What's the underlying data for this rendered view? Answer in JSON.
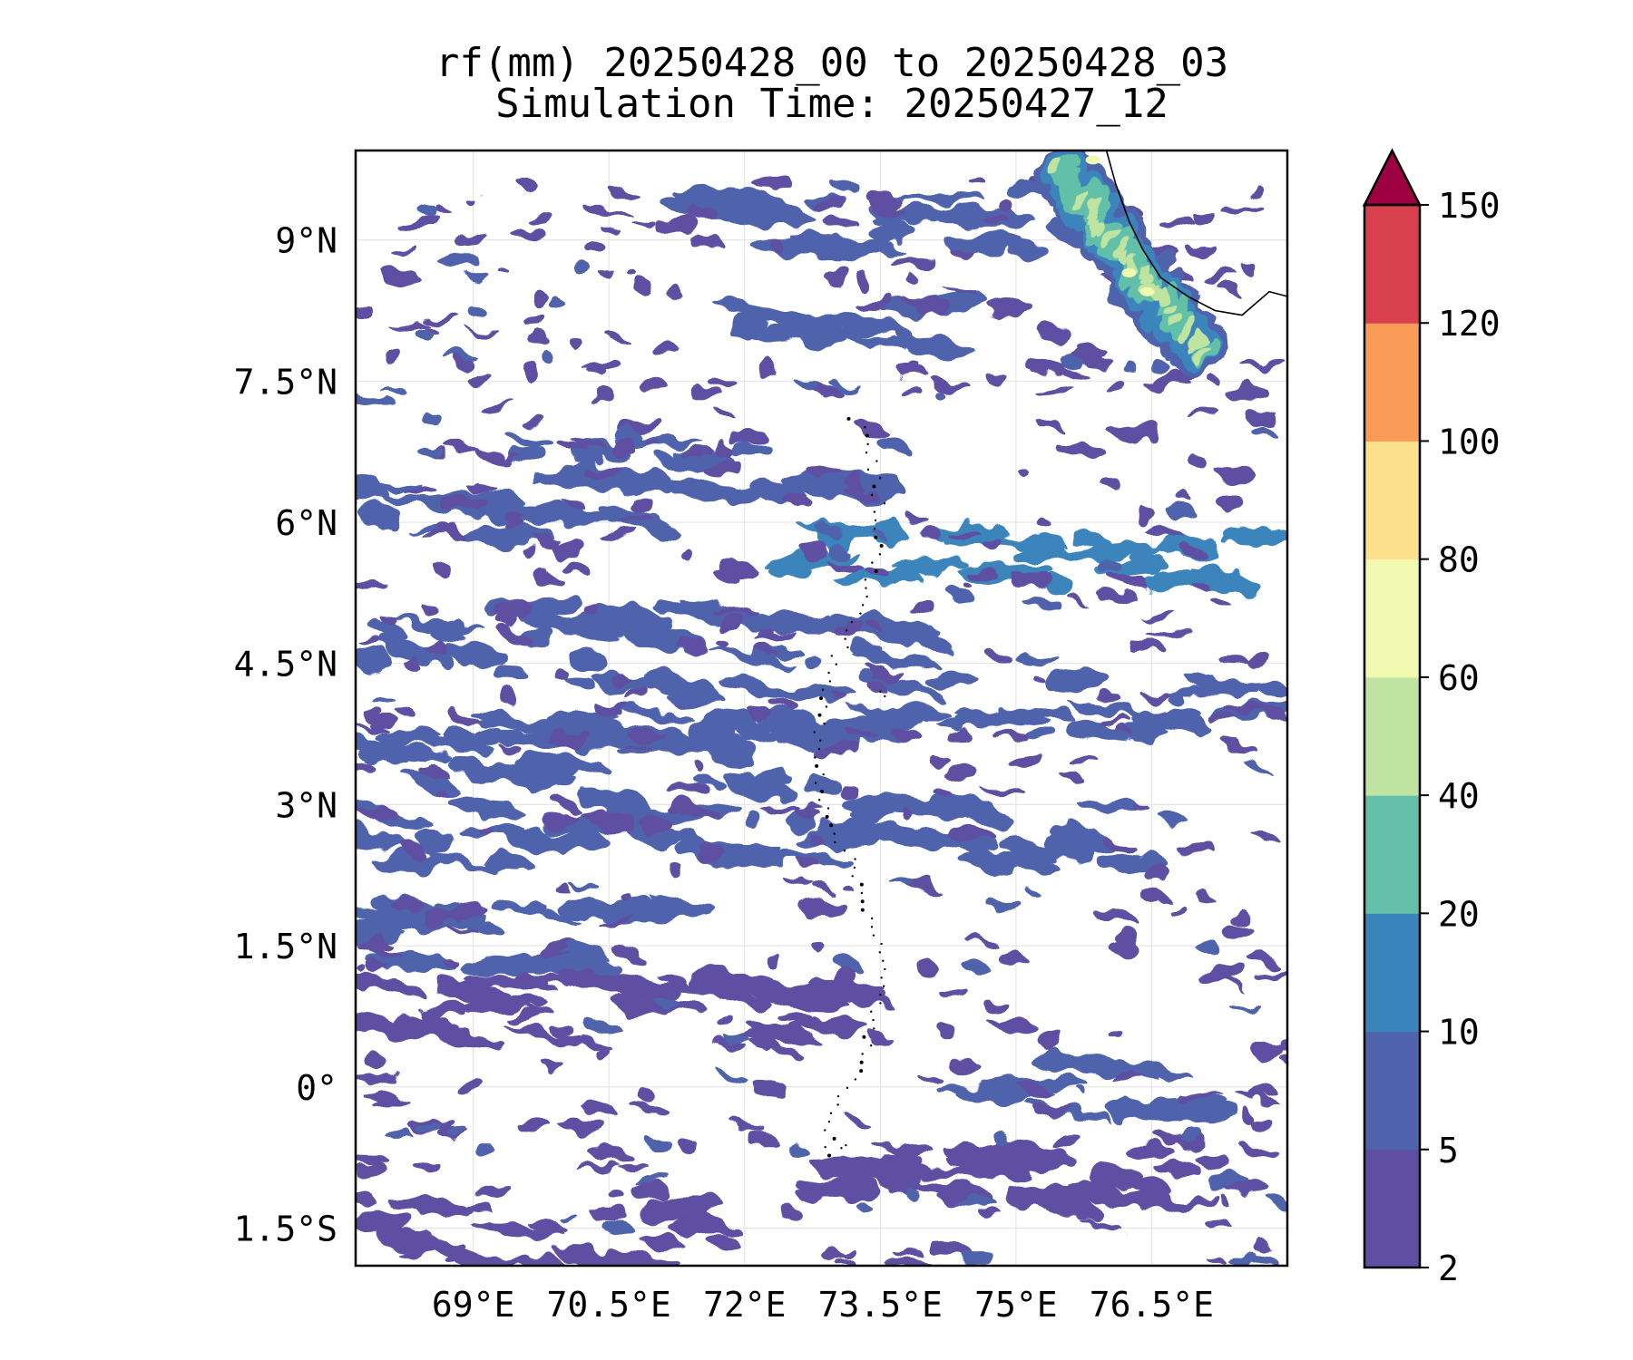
{
  "title_line1": "rf(mm) 20250428_00 to 20250428_03",
  "title_line2": "Simulation Time: 20250427_12",
  "map": {
    "lon_range": [
      67.7,
      78.0
    ],
    "lat_range": [
      -1.9,
      9.95
    ],
    "x_ticks": [
      {
        "value": 69.0,
        "label": "69°E"
      },
      {
        "value": 70.5,
        "label": "70.5°E"
      },
      {
        "value": 72.0,
        "label": "72°E"
      },
      {
        "value": 73.5,
        "label": "73.5°E"
      },
      {
        "value": 75.0,
        "label": "75°E"
      },
      {
        "value": 76.5,
        "label": "76.5°E"
      }
    ],
    "y_ticks": [
      {
        "value": 9.0,
        "label": "9°N"
      },
      {
        "value": 7.5,
        "label": "7.5°N"
      },
      {
        "value": 6.0,
        "label": "6°N"
      },
      {
        "value": 4.5,
        "label": "4.5°N"
      },
      {
        "value": 3.0,
        "label": "3°N"
      },
      {
        "value": 1.5,
        "label": "1.5°N"
      },
      {
        "value": 0.0,
        "label": "0°"
      },
      {
        "value": -1.5,
        "label": "1.5°S"
      }
    ],
    "grid": true
  },
  "colorbar": {
    "levels": [
      2,
      5,
      10,
      20,
      40,
      60,
      80,
      100,
      120,
      150
    ],
    "labels": [
      "2",
      "5",
      "10",
      "20",
      "40",
      "60",
      "80",
      "100",
      "120",
      "150"
    ],
    "colors": [
      "#5e4fa2",
      "#4f63ad",
      "#3a84bc",
      "#64c0a8",
      "#bfe4a2",
      "#f2f9b0",
      "#fde08c",
      "#fa9b58",
      "#d8404d"
    ],
    "extend_color": "#9e0142",
    "extend": "max"
  },
  "chart_data": {
    "type": "heatmap",
    "variable": "rf(mm)",
    "title": "rf(mm) 20250428_00 to 20250428_03",
    "subtitle": "Simulation Time: 20250427_12",
    "xlim": [
      67.7,
      78.0
    ],
    "ylim": [
      -1.9,
      9.95
    ],
    "rain_bands": [
      {
        "lat": 9.2,
        "lon_start": 71.5,
        "lon_end": 76.0,
        "level": 5
      },
      {
        "lat": 8.2,
        "lon_start": 72.0,
        "lon_end": 74.5,
        "level": 5
      },
      {
        "lat": 6.6,
        "lon_start": 69.5,
        "lon_end": 73.8,
        "level": 5
      },
      {
        "lat": 6.2,
        "lon_start": 67.7,
        "lon_end": 71.0,
        "level": 5
      },
      {
        "lat": 5.6,
        "lon_start": 72.5,
        "lon_end": 78.0,
        "level": 10
      },
      {
        "lat": 4.8,
        "lon_start": 67.7,
        "lon_end": 74.0,
        "level": 5
      },
      {
        "lat": 4.0,
        "lon_start": 69.0,
        "lon_end": 78.0,
        "level": 5
      },
      {
        "lat": 3.5,
        "lon_start": 67.7,
        "lon_end": 72.5,
        "level": 5
      },
      {
        "lat": 2.7,
        "lon_start": 67.7,
        "lon_end": 76.5,
        "level": 5
      },
      {
        "lat": 1.6,
        "lon_start": 67.7,
        "lon_end": 71.5,
        "level": 5
      },
      {
        "lat": 0.8,
        "lon_start": 67.7,
        "lon_end": 73.5,
        "level": 2
      },
      {
        "lat": 0.0,
        "lon_start": 74.5,
        "lon_end": 77.3,
        "level": 5
      },
      {
        "lat": -1.0,
        "lon_start": 73.0,
        "lon_end": 77.0,
        "level": 2
      },
      {
        "lat": -1.6,
        "lon_start": 68.0,
        "lon_end": 72.0,
        "level": 2
      }
    ],
    "max_region": {
      "lat_range": [
        8.0,
        9.95
      ],
      "lon_range": [
        75.6,
        77.2
      ],
      "peak_level": 60
    }
  }
}
